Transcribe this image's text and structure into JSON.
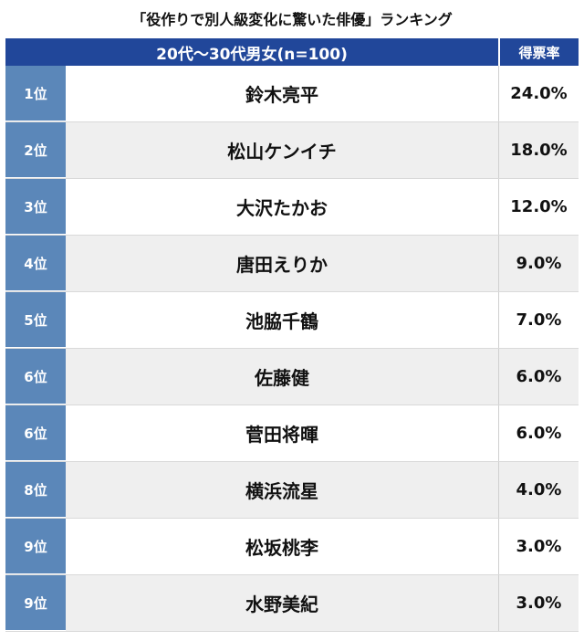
{
  "title": "「役作りで別人級変化に驚いた俳優」ランキング",
  "header": {
    "group": "20代〜30代男女(n=100)",
    "share": "得票率"
  },
  "chart_data": {
    "type": "table",
    "columns": [
      "",
      "20代〜30代男女(n=100)",
      "得票率"
    ],
    "rows": [
      {
        "rank": "1位",
        "name": "鈴木亮平",
        "pct": "24.0%",
        "value": 24.0
      },
      {
        "rank": "2位",
        "name": "松山ケンイチ",
        "pct": "18.0%",
        "value": 18.0
      },
      {
        "rank": "3位",
        "name": "大沢たかお",
        "pct": "12.0%",
        "value": 12.0
      },
      {
        "rank": "4位",
        "name": "唐田えりか",
        "pct": "9.0%",
        "value": 9.0
      },
      {
        "rank": "5位",
        "name": "池脇千鶴",
        "pct": "7.0%",
        "value": 7.0
      },
      {
        "rank": "6位",
        "name": "佐藤健",
        "pct": "6.0%",
        "value": 6.0
      },
      {
        "rank": "6位",
        "name": "菅田将暉",
        "pct": "6.0%",
        "value": 6.0
      },
      {
        "rank": "8位",
        "name": "横浜流星",
        "pct": "4.0%",
        "value": 4.0
      },
      {
        "rank": "9位",
        "name": "松坂桃李",
        "pct": "3.0%",
        "value": 3.0
      },
      {
        "rank": "9位",
        "name": "水野美紀",
        "pct": "3.0%",
        "value": 3.0
      }
    ]
  },
  "colors": {
    "header": "#21479a",
    "rank_cell": "#5b87b9",
    "stripe": "#efefef"
  }
}
